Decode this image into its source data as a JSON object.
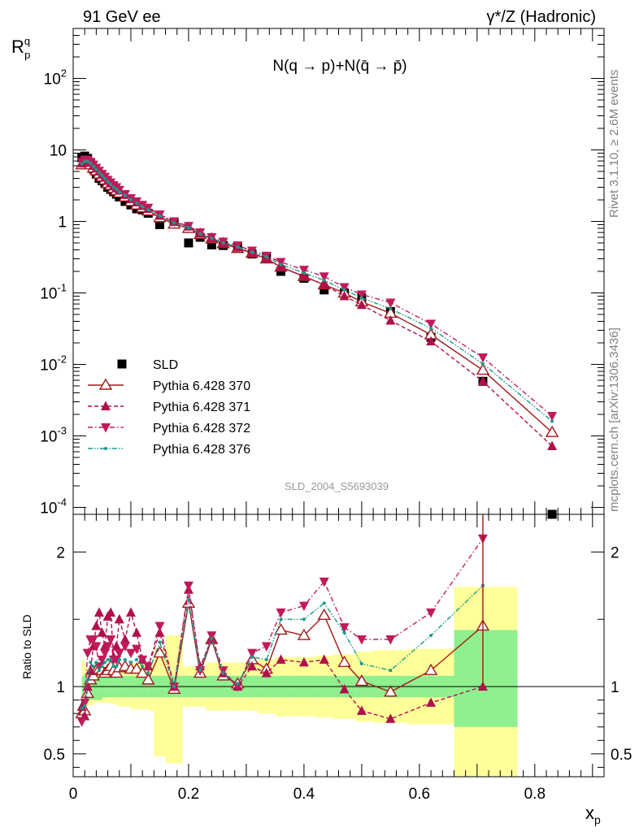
{
  "header": {
    "left": "91 GeV ee",
    "right": "γ*/Z (Hadronic)"
  },
  "side_labels": {
    "rivet": "Rivet 3.1.10, ≥ 2.6M events",
    "mcplots": "mcplots.cern.ch [arXiv:1306.3436]"
  },
  "plot_title": "N(q → p)+N(q̄ → p̄)",
  "analysis_id": "SLD_2004_S5693039",
  "chart_data": [
    {
      "type": "scatter",
      "panel": "main",
      "ylabel": "R_p^q",
      "yscale": "log",
      "ylim": [
        8e-05,
        500
      ],
      "xlim": [
        0,
        0.92
      ],
      "y_tick_labels": [
        "10^-4",
        "10^-3",
        "10^-2",
        "10^-1",
        "1",
        "10",
        "10^2"
      ],
      "legend_position": "lower-left",
      "series": [
        {
          "name": "SLD",
          "style": "data",
          "color": "#000000",
          "x": [
            0.015,
            0.02,
            0.025,
            0.03,
            0.035,
            0.04,
            0.045,
            0.05,
            0.055,
            0.06,
            0.065,
            0.07,
            0.075,
            0.08,
            0.09,
            0.1,
            0.11,
            0.12,
            0.13,
            0.15,
            0.175,
            0.2,
            0.22,
            0.24,
            0.26,
            0.285,
            0.31,
            0.335,
            0.36,
            0.4,
            0.435,
            0.47,
            0.5,
            0.55,
            0.62,
            0.71,
            0.83
          ],
          "y": [
            7.8,
            8.2,
            7.6,
            6.5,
            5.4,
            4.6,
            4.0,
            3.7,
            3.4,
            3.0,
            2.8,
            2.6,
            2.4,
            2.2,
            1.9,
            1.7,
            1.5,
            1.45,
            1.3,
            0.9,
            0.95,
            0.5,
            0.6,
            0.47,
            0.46,
            0.44,
            0.35,
            0.32,
            0.2,
            0.16,
            0.11,
            0.1,
            0.085,
            0.055,
            0.024,
            0.0058,
            8e-05
          ]
        },
        {
          "name": "Pythia 6.428 370",
          "style": "open-triangle-solid",
          "color": "#a01818",
          "x": [
            0.015,
            0.02,
            0.025,
            0.03,
            0.035,
            0.04,
            0.045,
            0.05,
            0.055,
            0.06,
            0.065,
            0.07,
            0.075,
            0.08,
            0.09,
            0.1,
            0.11,
            0.12,
            0.13,
            0.15,
            0.175,
            0.2,
            0.22,
            0.24,
            0.26,
            0.285,
            0.31,
            0.335,
            0.36,
            0.4,
            0.435,
            0.47,
            0.5,
            0.55,
            0.62,
            0.71,
            0.83
          ],
          "y": [
            6.2,
            6.6,
            6.6,
            6.2,
            5.6,
            5.1,
            4.6,
            4.2,
            3.8,
            3.4,
            3.2,
            2.9,
            2.7,
            2.5,
            2.2,
            1.9,
            1.7,
            1.55,
            1.4,
            1.13,
            0.92,
            0.8,
            0.66,
            0.57,
            0.49,
            0.42,
            0.36,
            0.3,
            0.23,
            0.17,
            0.13,
            0.1,
            0.075,
            0.052,
            0.026,
            0.0083,
            0.00112
          ]
        },
        {
          "name": "Pythia 6.428 371",
          "style": "filled-triangle-dashed",
          "color": "#b0104c",
          "x": [
            0.015,
            0.02,
            0.025,
            0.03,
            0.035,
            0.04,
            0.045,
            0.05,
            0.055,
            0.06,
            0.065,
            0.07,
            0.075,
            0.08,
            0.09,
            0.1,
            0.11,
            0.12,
            0.13,
            0.15,
            0.175,
            0.2,
            0.22,
            0.24,
            0.26,
            0.285,
            0.31,
            0.335,
            0.36,
            0.4,
            0.435,
            0.47,
            0.5,
            0.55,
            0.62,
            0.71,
            0.83
          ],
          "y": [
            6.6,
            7.0,
            7.0,
            6.6,
            6.0,
            5.5,
            5.0,
            4.5,
            4.1,
            3.7,
            3.4,
            3.1,
            2.9,
            2.7,
            2.35,
            2.05,
            1.85,
            1.65,
            1.5,
            1.2,
            0.98,
            0.85,
            0.68,
            0.58,
            0.5,
            0.43,
            0.36,
            0.3,
            0.23,
            0.17,
            0.13,
            0.09,
            0.068,
            0.041,
            0.021,
            0.0058,
            0.00072
          ]
        },
        {
          "name": "Pythia 6.428 372",
          "style": "filled-invtriangle-dashdot",
          "color": "#c01a5a",
          "x": [
            0.015,
            0.02,
            0.025,
            0.03,
            0.035,
            0.04,
            0.045,
            0.05,
            0.055,
            0.06,
            0.065,
            0.07,
            0.075,
            0.08,
            0.09,
            0.1,
            0.11,
            0.12,
            0.13,
            0.15,
            0.175,
            0.2,
            0.22,
            0.24,
            0.26,
            0.285,
            0.31,
            0.335,
            0.36,
            0.4,
            0.435,
            0.47,
            0.5,
            0.55,
            0.62,
            0.71,
            0.83
          ],
          "y": [
            6.8,
            7.3,
            7.2,
            6.8,
            6.2,
            5.6,
            5.1,
            4.6,
            4.2,
            3.8,
            3.5,
            3.2,
            3.0,
            2.75,
            2.4,
            2.1,
            1.9,
            1.7,
            1.55,
            1.25,
            1.0,
            0.86,
            0.7,
            0.6,
            0.52,
            0.46,
            0.39,
            0.33,
            0.27,
            0.21,
            0.17,
            0.12,
            0.095,
            0.073,
            0.037,
            0.0125,
            0.0019
          ]
        },
        {
          "name": "Pythia 6.428 376",
          "style": "small-marker-dashdotdot",
          "color": "#1a9a8a",
          "x": [
            0.015,
            0.02,
            0.025,
            0.03,
            0.035,
            0.04,
            0.045,
            0.05,
            0.055,
            0.06,
            0.065,
            0.07,
            0.075,
            0.08,
            0.09,
            0.1,
            0.11,
            0.12,
            0.13,
            0.15,
            0.175,
            0.2,
            0.22,
            0.24,
            0.26,
            0.285,
            0.31,
            0.335,
            0.36,
            0.4,
            0.435,
            0.47,
            0.5,
            0.55,
            0.62,
            0.71,
            0.83
          ],
          "y": [
            6.4,
            6.9,
            6.9,
            6.5,
            5.9,
            5.3,
            4.8,
            4.4,
            4.0,
            3.6,
            3.3,
            3.0,
            2.8,
            2.6,
            2.3,
            2.0,
            1.8,
            1.6,
            1.45,
            1.2,
            0.95,
            0.82,
            0.67,
            0.58,
            0.5,
            0.44,
            0.37,
            0.32,
            0.25,
            0.19,
            0.15,
            0.11,
            0.085,
            0.06,
            0.032,
            0.0102,
            0.0016
          ]
        }
      ]
    },
    {
      "type": "line",
      "panel": "ratio",
      "ylabel": "Ratio to SLD",
      "xlabel": "x_p",
      "ylim": [
        0.33,
        2.28
      ],
      "xlim": [
        0,
        0.92
      ],
      "y_ticks": [
        0.5,
        1,
        2
      ],
      "x_ticks": [
        0,
        0.2,
        0.4,
        0.6,
        0.8
      ],
      "x_tick_labels": [
        "0",
        "0.2",
        "0.4",
        "0.6",
        "0.8"
      ],
      "bands": {
        "edges": [
          0.015,
          0.02,
          0.025,
          0.03,
          0.035,
          0.04,
          0.045,
          0.05,
          0.055,
          0.06,
          0.065,
          0.07,
          0.075,
          0.08,
          0.09,
          0.1,
          0.11,
          0.12,
          0.13,
          0.14,
          0.16,
          0.19,
          0.21,
          0.23,
          0.25,
          0.27,
          0.3,
          0.32,
          0.35,
          0.38,
          0.42,
          0.45,
          0.49,
          0.52,
          0.58,
          0.66,
          0.77
        ],
        "inner_lo": [
          0.92,
          0.9,
          0.9,
          0.9,
          0.9,
          0.9,
          0.9,
          0.92,
          0.92,
          0.92,
          0.92,
          0.92,
          0.92,
          0.92,
          0.92,
          0.92,
          0.92,
          0.92,
          0.92,
          0.92,
          0.92,
          0.92,
          0.92,
          0.92,
          0.92,
          0.92,
          0.92,
          0.92,
          0.92,
          0.92,
          0.92,
          0.92,
          0.92,
          0.92,
          0.92,
          0.7
        ],
        "inner_hi": [
          1.08,
          1.1,
          1.1,
          1.1,
          1.1,
          1.1,
          1.1,
          1.08,
          1.08,
          1.08,
          1.08,
          1.08,
          1.08,
          1.08,
          1.08,
          1.08,
          1.08,
          1.08,
          1.08,
          1.08,
          1.08,
          1.08,
          1.08,
          1.08,
          1.08,
          1.08,
          1.08,
          1.08,
          1.08,
          1.08,
          1.08,
          1.08,
          1.08,
          1.08,
          1.08,
          1.42
        ],
        "outer_lo": [
          0.8,
          0.85,
          0.86,
          0.86,
          0.88,
          0.88,
          0.88,
          0.88,
          0.88,
          0.88,
          0.87,
          0.87,
          0.86,
          0.85,
          0.85,
          0.83,
          0.83,
          0.83,
          0.82,
          0.48,
          0.43,
          0.85,
          0.85,
          0.82,
          0.82,
          0.82,
          0.82,
          0.8,
          0.78,
          0.78,
          0.77,
          0.76,
          0.74,
          0.73,
          0.72,
          0.3
        ],
        "outer_hi": [
          1.2,
          1.15,
          1.14,
          1.14,
          1.12,
          1.12,
          1.12,
          1.12,
          1.12,
          1.12,
          1.13,
          1.13,
          1.14,
          1.15,
          1.15,
          1.17,
          1.17,
          1.17,
          1.18,
          1.28,
          1.38,
          1.15,
          1.15,
          1.18,
          1.18,
          1.18,
          1.18,
          1.2,
          1.22,
          1.22,
          1.23,
          1.24,
          1.26,
          1.27,
          1.28,
          1.74
        ]
      },
      "series": [
        {
          "name": "Pythia 6.428 370",
          "color": "#a01818",
          "x": [
            0.015,
            0.02,
            0.025,
            0.03,
            0.035,
            0.04,
            0.045,
            0.05,
            0.055,
            0.06,
            0.065,
            0.07,
            0.075,
            0.08,
            0.09,
            0.1,
            0.11,
            0.12,
            0.13,
            0.15,
            0.175,
            0.2,
            0.22,
            0.24,
            0.26,
            0.285,
            0.31,
            0.335,
            0.36,
            0.4,
            0.435,
            0.47,
            0.5,
            0.55,
            0.62,
            0.71
          ],
          "y": [
            0.8,
            0.82,
            0.95,
            1.05,
            1.08,
            1.12,
            1.13,
            1.12,
            1.1,
            1.12,
            1.15,
            1.12,
            1.1,
            1.14,
            1.15,
            1.13,
            1.13,
            1.1,
            1.05,
            1.25,
            0.98,
            1.62,
            1.1,
            1.35,
            1.08,
            1.02,
            1.2,
            1.13,
            1.42,
            1.38,
            1.53,
            1.18,
            1.04,
            0.96,
            1.12,
            1.45
          ]
        },
        {
          "name": "Pythia 6.428 371",
          "color": "#b0104c",
          "x": [
            0.015,
            0.02,
            0.025,
            0.03,
            0.035,
            0.04,
            0.045,
            0.05,
            0.055,
            0.06,
            0.065,
            0.07,
            0.075,
            0.08,
            0.09,
            0.1,
            0.11,
            0.12,
            0.13,
            0.15,
            0.175,
            0.2,
            0.22,
            0.24,
            0.26,
            0.285,
            0.31,
            0.335,
            0.36,
            0.4,
            0.435,
            0.47,
            0.5,
            0.55,
            0.62,
            0.71
          ],
          "y": [
            0.85,
            0.78,
            1.0,
            1.12,
            1.3,
            1.45,
            1.55,
            1.4,
            1.3,
            1.52,
            1.55,
            1.22,
            1.3,
            1.5,
            1.35,
            1.55,
            1.4,
            1.2,
            1.15,
            1.4,
            1.0,
            1.72,
            1.15,
            1.35,
            1.1,
            1.0,
            1.15,
            1.1,
            1.2,
            1.18,
            1.2,
            0.98,
            0.82,
            0.76,
            0.88,
            1.0
          ]
        },
        {
          "name": "Pythia 6.428 372",
          "color": "#c01a5a",
          "x": [
            0.015,
            0.02,
            0.025,
            0.03,
            0.035,
            0.04,
            0.045,
            0.05,
            0.055,
            0.06,
            0.065,
            0.07,
            0.075,
            0.08,
            0.09,
            0.1,
            0.11,
            0.12,
            0.13,
            0.15,
            0.175,
            0.2,
            0.22,
            0.24,
            0.26,
            0.285,
            0.31,
            0.335,
            0.36,
            0.4,
            0.435,
            0.47,
            0.5,
            0.55,
            0.62,
            0.71
          ],
          "y": [
            0.74,
            0.88,
            1.25,
            1.35,
            1.35,
            1.3,
            1.15,
            1.2,
            1.25,
            1.3,
            1.35,
            1.2,
            1.2,
            1.25,
            1.3,
            1.25,
            1.28,
            1.2,
            1.15,
            1.45,
            1.0,
            1.75,
            1.12,
            1.38,
            1.12,
            1.0,
            1.25,
            1.3,
            1.55,
            1.6,
            1.78,
            1.44,
            1.35,
            1.35,
            1.55,
            2.1
          ]
        },
        {
          "name": "Pythia 6.428 376",
          "color": "#1a9a8a",
          "x": [
            0.015,
            0.02,
            0.025,
            0.03,
            0.035,
            0.04,
            0.045,
            0.05,
            0.055,
            0.06,
            0.065,
            0.07,
            0.075,
            0.08,
            0.09,
            0.1,
            0.11,
            0.12,
            0.13,
            0.15,
            0.175,
            0.2,
            0.22,
            0.24,
            0.26,
            0.285,
            0.31,
            0.335,
            0.36,
            0.4,
            0.435,
            0.47,
            0.5,
            0.55,
            0.62,
            0.71
          ],
          "y": [
            0.84,
            0.86,
            1.05,
            1.18,
            1.15,
            1.18,
            1.12,
            1.15,
            1.18,
            1.2,
            1.2,
            1.15,
            1.15,
            1.2,
            1.2,
            1.18,
            1.2,
            1.15,
            1.1,
            1.33,
            1.0,
            1.65,
            1.12,
            1.36,
            1.1,
            1.02,
            1.22,
            1.2,
            1.5,
            1.5,
            1.62,
            1.4,
            1.17,
            1.12,
            1.38,
            1.75
          ]
        }
      ]
    }
  ],
  "colors": {
    "data": "#000000",
    "band_inner": "#8ef08e",
    "band_outer": "#ffff99",
    "p370": "#a01818",
    "p371": "#b0104c",
    "p372": "#c01a5a",
    "p376": "#1a9a8a"
  }
}
